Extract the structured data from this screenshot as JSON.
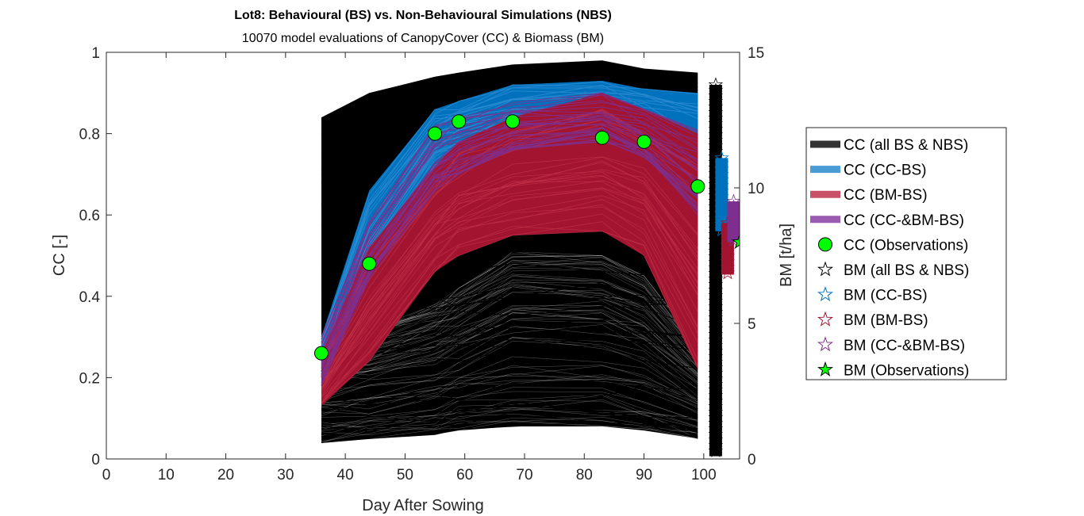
{
  "chart_data": {
    "type": "line",
    "title": "Lot8: Behavioural (BS) vs. Non-Behavioural Simulations (NBS)",
    "subtitle": "10070 model evaluations of CanopyCover (CC) & Biomass (BM)",
    "xlabel": "Day After Sowing",
    "ylabel_left": "CC [-]",
    "ylabel_right": "BM [t/ha]",
    "xlim": [
      0,
      106
    ],
    "ylim_left": [
      0,
      1
    ],
    "ylim_right": [
      0,
      15
    ],
    "xticks": [
      "0",
      "10",
      "20",
      "30",
      "40",
      "50",
      "60",
      "70",
      "80",
      "90",
      "100"
    ],
    "yticks_left": [
      "0",
      "0.2",
      "0.4",
      "0.6",
      "0.8",
      "1"
    ],
    "yticks_right": [
      "0",
      "5",
      "10",
      "15"
    ],
    "legend_position": "outside-right",
    "colors": {
      "all": "#000000",
      "cc_bs": "#0072BD",
      "bm_bs": "#A2142F",
      "cc_bm_bs": "#7E2F8E",
      "obs": "#00FF00"
    },
    "series": [
      {
        "name": "CC (all BS & NBS)",
        "x": [
          36,
          44,
          55,
          59,
          68,
          83,
          90,
          99
        ],
        "lower": [
          0.04,
          0.05,
          0.06,
          0.07,
          0.08,
          0.08,
          0.07,
          0.05
        ],
        "upper": [
          0.84,
          0.9,
          0.94,
          0.95,
          0.97,
          0.98,
          0.96,
          0.95
        ],
        "low_band_upper": [
          0.3,
          0.32,
          0.38,
          0.42,
          0.51,
          0.5,
          0.45,
          0.28
        ]
      },
      {
        "name": "CC (CC-BS)",
        "x": [
          36,
          44,
          55,
          59,
          68,
          83,
          90,
          99
        ],
        "lower": [
          0.2,
          0.46,
          0.7,
          0.74,
          0.79,
          0.8,
          0.78,
          0.62
        ],
        "upper": [
          0.3,
          0.66,
          0.86,
          0.88,
          0.92,
          0.93,
          0.91,
          0.9
        ]
      },
      {
        "name": "CC (BM-BS)",
        "x": [
          36,
          44,
          55,
          59,
          68,
          83,
          90,
          99
        ],
        "lower": [
          0.13,
          0.24,
          0.46,
          0.5,
          0.55,
          0.56,
          0.5,
          0.22
        ],
        "upper": [
          0.26,
          0.52,
          0.72,
          0.78,
          0.84,
          0.9,
          0.86,
          0.8
        ]
      },
      {
        "name": "CC (CC-&BM-BS)",
        "x": [
          36,
          44,
          55,
          59,
          68,
          83,
          90,
          99
        ],
        "lower": [
          0.18,
          0.44,
          0.66,
          0.7,
          0.76,
          0.78,
          0.74,
          0.6
        ],
        "upper": [
          0.3,
          0.6,
          0.82,
          0.85,
          0.88,
          0.9,
          0.86,
          0.82
        ]
      },
      {
        "name": "CC (Observations)",
        "x": [
          36,
          44,
          55,
          59,
          68,
          83,
          90,
          99
        ],
        "y": [
          0.26,
          0.48,
          0.8,
          0.83,
          0.83,
          0.79,
          0.78,
          0.67
        ]
      },
      {
        "name": "BM (all BS & NBS)",
        "x": 102,
        "range": [
          0.1,
          13.8
        ]
      },
      {
        "name": "BM (CC-BS)",
        "x": 103,
        "range": [
          8.4,
          11.1
        ]
      },
      {
        "name": "BM (BM-BS)",
        "x": 104,
        "range": [
          6.8,
          8.7
        ]
      },
      {
        "name": "BM (CC-&BM-BS)",
        "x": 105,
        "range": [
          8.0,
          9.5
        ]
      },
      {
        "name": "BM (Observations)",
        "x": 106,
        "y": [
          8.0
        ]
      }
    ]
  }
}
